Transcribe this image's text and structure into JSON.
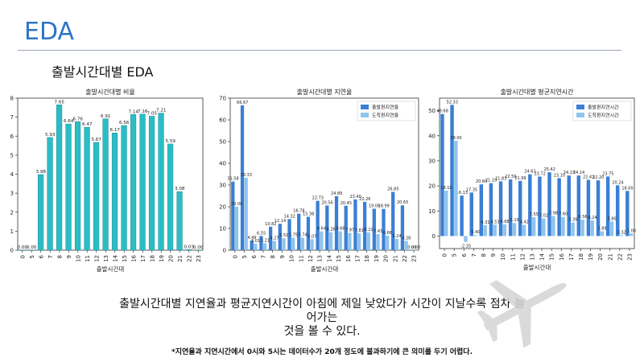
{
  "header": {
    "title": "EDA",
    "subtitle": "출발시간대별 EDA"
  },
  "chart_data": [
    {
      "type": "bar",
      "title": "출발시간대별 비율",
      "xlabel": "출발시간대",
      "ylabel": "",
      "ylim": [
        0,
        8
      ],
      "yticks": [
        0,
        1,
        2,
        3,
        4,
        5,
        6,
        7,
        8
      ],
      "categories": [
        "0",
        "5",
        "6",
        "7",
        "8",
        "9",
        "10",
        "11",
        "12",
        "13",
        "14",
        "15",
        "16",
        "17",
        "18",
        "19",
        "20",
        "21",
        "22",
        "23"
      ],
      "series": [
        {
          "name": "비율",
          "color": "#2bbdc6",
          "values": [
            0.0,
            0.0,
            3.98,
            5.93,
            7.65,
            6.64,
            6.76,
            6.47,
            5.67,
            6.91,
            6.17,
            6.56,
            7.14,
            7.16,
            7.05,
            7.21,
            5.59,
            3.08,
            0.03,
            0.0
          ],
          "labels": [
            "0.00",
            "0.00",
            "3.98",
            "5.93",
            "7.65",
            "6.64",
            "6.76",
            "6.47",
            "5.67",
            "6.91",
            "6.17",
            "6.56",
            "7.14",
            "7.16",
            "7.05",
            "7.21",
            "5.59",
            "3.08",
            "0.03",
            "0.00"
          ]
        }
      ]
    },
    {
      "type": "bar",
      "title": "출발시간대별 지연율",
      "xlabel": "출발시간대",
      "ylabel": "",
      "ylim": [
        0,
        70
      ],
      "yticks": [
        0,
        10,
        20,
        30,
        40,
        50,
        60,
        70
      ],
      "legend_position": "top-right",
      "categories": [
        "0",
        "5",
        "6",
        "7",
        "8",
        "9",
        "10",
        "11",
        "12",
        "13",
        "14",
        "15",
        "16",
        "17",
        "18",
        "19",
        "20",
        "21",
        "22",
        "23"
      ],
      "series": [
        {
          "name": "출발편지연율",
          "color": "#3a7fd5",
          "values": [
            31.58,
            66.67,
            4.49,
            6.55,
            10.82,
            12.14,
            14.32,
            16.78,
            15.38,
            22.73,
            20.56,
            24.89,
            20.45,
            23.4,
            22.26,
            19.08,
            18.99,
            26.85,
            20.65,
            0.0
          ],
          "labels": [
            "31.58",
            "66.67",
            "4.49",
            "6.55",
            "10.82",
            "12.14",
            "14.32",
            "16.78",
            "15.38",
            "22.73",
            "20.56",
            "24.89",
            "20.45",
            "23.40",
            "22.26",
            "19.08",
            "18.99",
            "26.85",
            "20.65",
            "0.00"
          ]
        },
        {
          "name": "도착편지연율",
          "color": "#8fc4ec",
          "values": [
            20.0,
            33.33,
            3.01,
            3.21,
            4.27,
            5.51,
            5.75,
            5.74,
            5.07,
            8.64,
            8.26,
            8.68,
            7.97,
            7.81,
            8.21,
            7.43,
            6.68,
            5.24,
            4.28,
            0.0
          ],
          "labels": [
            "20.00",
            "33.33",
            "3.01",
            "3.21",
            "4.27",
            "5.51",
            "5.75",
            "5.74",
            "5.07",
            "8.64",
            "8.26",
            "8.68",
            "7.97",
            "7.81",
            "8.21",
            "7.43",
            "6.68",
            "5.24",
            "4.28",
            "0.00"
          ]
        }
      ]
    },
    {
      "type": "bar",
      "title": "출발시간대별 평균지연시간",
      "xlabel": "출발시간대",
      "ylabel": "",
      "ylim": [
        -5,
        55
      ],
      "yticks": [
        0,
        10,
        20,
        30,
        40,
        50
      ],
      "legend_position": "top-right",
      "categories": [
        "0",
        "5",
        "6",
        "7",
        "8",
        "9",
        "10",
        "11",
        "12",
        "13",
        "14",
        "15",
        "16",
        "17",
        "18",
        "19",
        "20",
        "21",
        "22",
        "23"
      ],
      "series": [
        {
          "name": "출발편지연시간",
          "color": "#3a7fd5",
          "values": [
            48.68,
            52.33,
            16.13,
            17.35,
            20.6,
            21.1,
            21.83,
            22.59,
            21.99,
            24.61,
            23.72,
            25.42,
            23.1,
            24.13,
            24.14,
            22.42,
            22.2,
            23.75,
            20.24,
            18.0
          ],
          "labels": [
            "48.68",
            "52.33",
            "16.13",
            "17.35",
            "20.60",
            "21.10",
            "21.83",
            "22.59",
            "21.99",
            "24.61",
            "23.72",
            "25.42",
            "23.10",
            "24.13",
            "24.14",
            "22.42",
            "22.20",
            "23.75",
            "20.24",
            "18.00"
          ]
        },
        {
          "name": "도착편지연시간",
          "color": "#8fc4ec",
          "values": [
            18.1,
            38.0,
            -2.35,
            0.4,
            4.31,
            4.53,
            4.68,
            5.19,
            4.42,
            7.55,
            7.02,
            7.98,
            7.6,
            5.39,
            6.56,
            6.24,
            1.89,
            5.8,
            0.32,
            1.0
          ],
          "labels": [
            "18.10",
            "38.00",
            "-2.35",
            "0.40",
            "4.31",
            "4.53",
            "4.68",
            "5.19",
            "4.42",
            "7.55",
            "7.02",
            "7.98",
            "7.60",
            "5.39",
            "6.56",
            "6.24",
            "1.89",
            "5.80",
            "0.32",
            "1.00"
          ]
        }
      ]
    }
  ],
  "summary": {
    "line1": "출발시간대별 지연율과 평균지연시간이 아침에 제일 낮았다가 시간이 지날수록 점차 늘",
    "line2": "어가는",
    "line3": "것을 볼 수 있다."
  },
  "footnote": "*지연율과 지연시간에서 0시와 5시는 데이터수가 20개 정도에 불과하기에 큰 의미를 두기 어렵다."
}
